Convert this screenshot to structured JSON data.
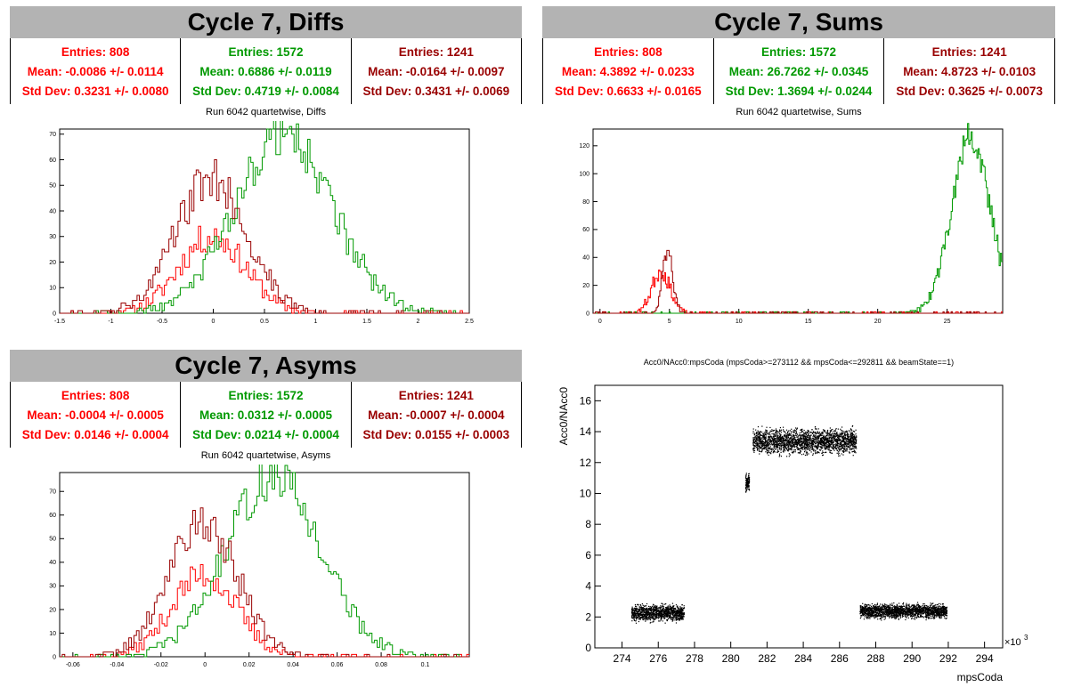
{
  "colors": {
    "red": "#ff0000",
    "green": "#009900",
    "darkred": "#990000"
  },
  "panels": {
    "diffs": {
      "title": "Cycle 7, Diffs",
      "run_title": "Run 6042 quartetwise, Diffs",
      "stats": [
        {
          "entries": "Entries: 808",
          "mean": "Mean: -0.0086 +/- 0.0114",
          "std": "Std Dev: 0.3231 +/- 0.0080"
        },
        {
          "entries": "Entries: 1572",
          "mean": "Mean: 0.6886 +/- 0.0119",
          "std": "Std Dev: 0.4719 +/- 0.0084"
        },
        {
          "entries": "Entries: 1241",
          "mean": "Mean: -0.0164 +/- 0.0097",
          "std": "Std Dev: 0.3431 +/- 0.0069"
        }
      ]
    },
    "sums": {
      "title": "Cycle 7, Sums",
      "run_title": "Run 6042 quartetwise, Sums",
      "stats": [
        {
          "entries": "Entries: 808",
          "mean": "Mean: 4.3892 +/- 0.0233",
          "std": "Std Dev: 0.6633 +/- 0.0165"
        },
        {
          "entries": "Entries: 1572",
          "mean": "Mean: 26.7262 +/- 0.0345",
          "std": "Std Dev: 1.3694 +/- 0.0244"
        },
        {
          "entries": "Entries: 1241",
          "mean": "Mean: 4.8723 +/- 0.0103",
          "std": "Std Dev: 0.3625 +/- 0.0073"
        }
      ]
    },
    "asyms": {
      "title": "Cycle 7, Asyms",
      "run_title": "Run 6042 quartetwise, Asyms",
      "stats": [
        {
          "entries": "Entries: 808",
          "mean": "Mean: -0.0004 +/- 0.0005",
          "std": "Std Dev: 0.0146 +/- 0.0004"
        },
        {
          "entries": "Entries: 1572",
          "mean": "Mean: 0.0312 +/- 0.0005",
          "std": "Std Dev: 0.0214 +/- 0.0004"
        },
        {
          "entries": "Entries: 1241",
          "mean": "Mean: -0.0007 +/- 0.0004",
          "std": "Std Dev: 0.0155 +/- 0.0003"
        }
      ]
    },
    "scatter": {
      "title": "Acc0/NAcc0:mpsCoda (mpsCoda>=273112 && mpsCoda<=292811 && beamState==1)",
      "xlabel": "mpsCoda",
      "ylabel": "Acc0/NAcc0",
      "xexp": "×10"
    }
  },
  "chart_data": [
    {
      "type": "histogram",
      "id": "diffs",
      "xlim": [
        -1.5,
        2.5
      ],
      "ylim": [
        0,
        72
      ],
      "xticks": [
        -1.5,
        -1,
        -0.5,
        0,
        0.5,
        1,
        1.5,
        2,
        2.5
      ],
      "yticks": [
        0,
        10,
        20,
        30,
        40,
        50,
        60,
        70
      ],
      "series": [
        {
          "color": "red",
          "mean": -0.0086,
          "std": 0.3231,
          "peak": 30
        },
        {
          "color": "green",
          "mean": 0.6886,
          "std": 0.4719,
          "peak": 70
        },
        {
          "color": "darkred",
          "mean": -0.0164,
          "std": 0.3431,
          "peak": 53
        }
      ]
    },
    {
      "type": "histogram",
      "id": "sums",
      "xlim": [
        -0.5,
        29
      ],
      "ylim": [
        0,
        132
      ],
      "xticks": [
        0,
        5,
        10,
        15,
        20,
        25
      ],
      "yticks": [
        0,
        20,
        40,
        60,
        80,
        100,
        120
      ],
      "series": [
        {
          "color": "red",
          "mean": 4.3892,
          "std": 0.6633,
          "peak": 30
        },
        {
          "color": "green",
          "mean": 26.7262,
          "std": 1.3694,
          "peak": 127
        },
        {
          "color": "darkred",
          "mean": 4.8723,
          "std": 0.3625,
          "peak": 46
        }
      ]
    },
    {
      "type": "histogram",
      "id": "asyms",
      "xlim": [
        -0.066,
        0.12
      ],
      "ylim": [
        0,
        78
      ],
      "xticks": [
        -0.06,
        -0.04,
        -0.02,
        0,
        0.02,
        0.04,
        0.06,
        0.08,
        0.1
      ],
      "yticks": [
        0,
        10,
        20,
        30,
        40,
        50,
        60,
        70
      ],
      "series": [
        {
          "color": "red",
          "mean": -0.0004,
          "std": 0.0146,
          "peak": 35
        },
        {
          "color": "green",
          "mean": 0.0312,
          "std": 0.0214,
          "peak": 76
        },
        {
          "color": "darkred",
          "mean": -0.0007,
          "std": 0.0155,
          "peak": 57
        }
      ]
    },
    {
      "type": "scatter",
      "id": "scatter",
      "xlim": [
        272.5,
        295
      ],
      "ylim": [
        0,
        17
      ],
      "xticks": [
        274,
        276,
        278,
        280,
        282,
        284,
        286,
        288,
        290,
        292,
        294
      ],
      "yticks": [
        0,
        2,
        4,
        6,
        8,
        10,
        12,
        14,
        16
      ],
      "clusters": [
        {
          "x": [
            274.5,
            277.4
          ],
          "y_center": 2.3,
          "y_spread": 0.45
        },
        {
          "x": [
            280.8,
            281.0
          ],
          "y_center": 10.7,
          "y_spread": 0.5
        },
        {
          "x": [
            281.2,
            286.9
          ],
          "y_center": 13.4,
          "y_spread": 0.7
        },
        {
          "x": [
            287.1,
            291.9
          ],
          "y_center": 2.4,
          "y_spread": 0.4
        }
      ]
    }
  ]
}
